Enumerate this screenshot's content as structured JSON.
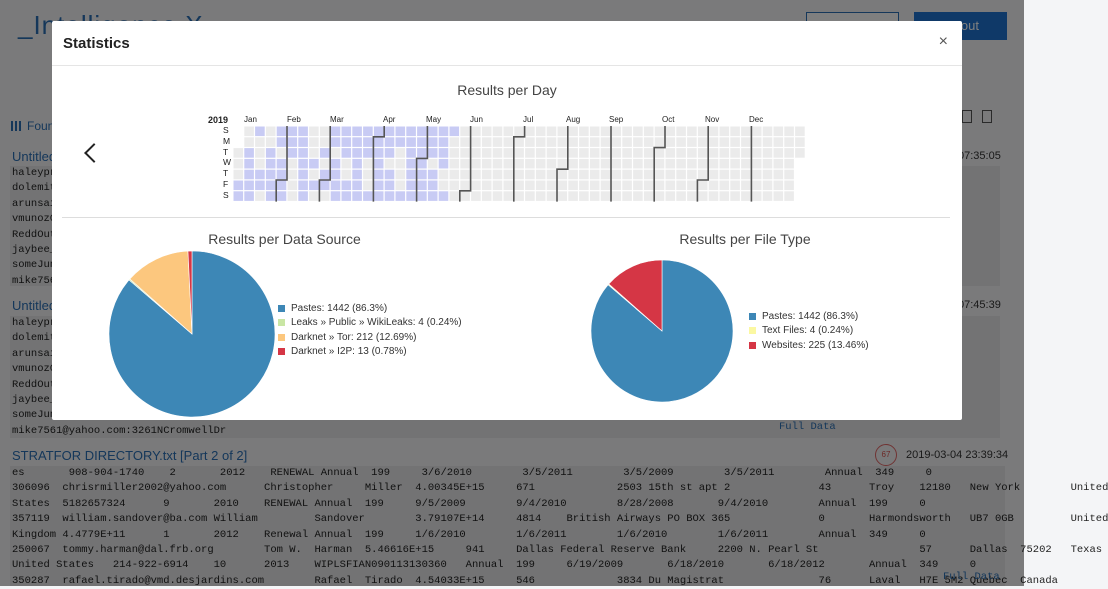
{
  "app": {
    "logo": "_Intelligence X",
    "btn_right": "out"
  },
  "bg": {
    "found_label": "Foun",
    "results": [
      {
        "title": "Untitled",
        "timestamp": "07:35:05",
        "lines": [
          "haleypr",
          "dolemit",
          "arunsai",
          "vmunoz0",
          "ReddOut",
          "jaybee_",
          "someJun",
          "mike756"
        ]
      },
      {
        "title": "Untitled",
        "timestamp": "07:45:39",
        "lines": [
          "haleypr",
          "dolemit",
          "arunsai",
          "vmunoz0",
          "ReddOut",
          "jaybee_",
          "someJun",
          "mike7561@yahoo.com:3261NCromwellDr"
        ],
        "full_data": "Full Data"
      },
      {
        "title": "STRATFOR DIRECTORY.txt [Part 2 of 2]",
        "timestamp": "2019-03-04 23:39:34",
        "score": "67",
        "lines": [
          "es       908-904-1740    2       2012    RENEWAL Annual  199     3/6/2010        3/5/2011        3/5/2009        3/5/2011        Annual  349     0",
          "306096  chrisrmiller2002@yahoo.com      Christopher     Miller  4.00345E+15     671             2503 15th st apt 2              43      Troy    12180   New York        United",
          "States  5182657324      9       2010    RENEWAL Annual  199     9/5/2009        9/4/2010        8/28/2008       9/4/2010        Annual  199     0",
          "357119  william.sandover@ba.com William         Sandover        3.79107E+14     4814    British Airways PO BOX 365              0       Harmondsworth   UB7 0GB         United",
          "Kingdom 4.4779E+11      1       2012    Renewal Annual  199     1/6/2010        1/6/2011        1/6/2010        1/6/2011        Annual  349     0",
          "250067  tommy.harman@dal.frb.org        Tom W.  Harman  5.46616E+15     941     Dallas Federal Reserve Bank     2200 N. Pearl St                57      Dallas  75202   Texas",
          "United States   214-922-6914    10      2013    WIPLSFIAN090113130360   Annual  199     6/19/2009       6/18/2010       6/18/2012       Annual  349     0",
          "350287  rafael.tirado@vmd.desjardins.com        Rafael  Tirado  4.54033E+15     546             3834 Du Magistrat               76      Laval   H7E 5M2 Quebec  Canada"
        ],
        "full_data": "Full Data"
      }
    ]
  },
  "modal": {
    "title": "Statistics",
    "close_icon": "×",
    "per_day_title": "Results per Day",
    "year": "2019",
    "months": [
      "Jan",
      "Feb",
      "Mar",
      "Apr",
      "May",
      "Jun",
      "Jul",
      "Aug",
      "Sep",
      "Oct",
      "Nov",
      "Dec"
    ],
    "days": [
      "S",
      "M",
      "T",
      "W",
      "T",
      "F",
      "S"
    ],
    "data_source_title": "Results per Data Source",
    "file_type_title": "Results per File Type"
  },
  "chart_data": [
    {
      "type": "heatmap",
      "title": "Results per Day",
      "year": "2019",
      "note": "calendar heatmap; highlighted days have results (mostly Jan–May)",
      "colors": {
        "empty": "#ebebeb",
        "low": "#c8cbf4",
        "active_border": "#555555"
      }
    },
    {
      "type": "pie",
      "title": "Results per Data Source",
      "series": [
        {
          "name": "Pastes",
          "label": "Pastes: 1442 (86.3%)",
          "value": 1442,
          "color": "#3d87b6"
        },
        {
          "name": "Leaks » Public » WikiLeaks",
          "label": "Leaks » Public » WikiLeaks: 4 (0.24%)",
          "value": 4,
          "color": "#c9e6a4"
        },
        {
          "name": "Darknet » Tor",
          "label": "Darknet » Tor: 212 (12.69%)",
          "value": 212,
          "color": "#fcc77e"
        },
        {
          "name": "Darknet » I2P",
          "label": "Darknet » I2P: 13 (0.78%)",
          "value": 13,
          "color": "#d53645"
        }
      ]
    },
    {
      "type": "pie",
      "title": "Results per File Type",
      "series": [
        {
          "name": "Pastes",
          "label": "Pastes: 1442 (86.3%)",
          "value": 1442,
          "color": "#3d87b6"
        },
        {
          "name": "Text Files",
          "label": "Text Files: 4 (0.24%)",
          "value": 4,
          "color": "#fbf8a2"
        },
        {
          "name": "Websites",
          "label": "Websites: 225 (13.46%)",
          "value": 225,
          "color": "#d53645"
        }
      ]
    }
  ]
}
